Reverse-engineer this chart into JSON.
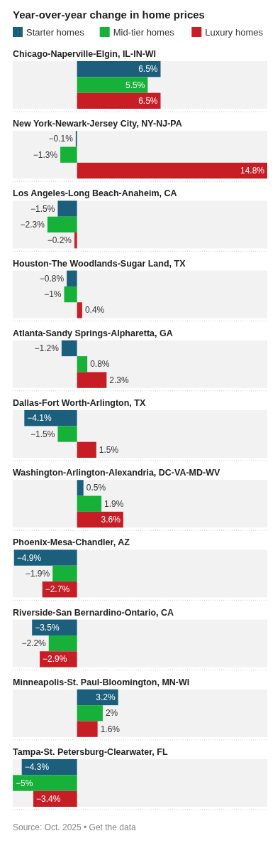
{
  "chart_data": {
    "type": "bar",
    "orientation": "horizontal",
    "title": "Year-over-year change in home prices",
    "categories": [
      "Chicago-Naperville-Elgin, IL-IN-WI",
      "New York-Newark-Jersey City, NY-NJ-PA",
      "Los Angeles-Long Beach-Anaheim, CA",
      "Houston-The Woodlands-Sugar Land, TX",
      "Atlanta-Sandy Springs-Alpharetta, GA",
      "Dallas-Fort Worth-Arlington, TX",
      "Washington-Arlington-Alexandria, DC-VA-MD-WV",
      "Phoenix-Mesa-Chandler, AZ",
      "Riverside-San Bernardino-Ontario, CA",
      "Minneapolis-St. Paul-Bloomington, MN-WI",
      "Tampa-St. Petersburg-Clearwater, FL"
    ],
    "xlim": [
      -5,
      14.8
    ],
    "series": [
      {
        "name": "Starter homes",
        "color": "#1b5f7c",
        "values": [
          6.5,
          -0.1,
          -1.5,
          -0.8,
          -1.2,
          -4.1,
          0.5,
          -4.9,
          -3.5,
          3.2,
          -4.3
        ],
        "value_labels": [
          "6.5%",
          "−0.1%",
          "−1.5%",
          "−0.8%",
          "−1.2%",
          "−4.1%",
          "0.5%",
          "−4.9%",
          "−3.5%",
          "3.2%",
          "−4.3%"
        ]
      },
      {
        "name": "Mid-tier homes",
        "color": "#16b139",
        "values": [
          5.5,
          -1.3,
          -2.3,
          -1,
          0.8,
          -1.5,
          1.9,
          -1.9,
          -2.2,
          2,
          -5
        ],
        "value_labels": [
          "5.5%",
          "−1.3%",
          "−2.3%",
          "−1%",
          "0.8%",
          "−1.5%",
          "1.9%",
          "−1.9%",
          "−2.2%",
          "2%",
          "−5%"
        ]
      },
      {
        "name": "Luxury homes",
        "color": "#c71e26",
        "values": [
          6.5,
          14.8,
          -0.2,
          0.4,
          2.3,
          1.5,
          3.6,
          -2.7,
          -2.9,
          1.6,
          -3.4
        ],
        "value_labels": [
          "6.5%",
          "14.8%",
          "−0.2%",
          "0.4%",
          "2.3%",
          "1.5%",
          "3.6%",
          "−2.7%",
          "−2.9%",
          "1.6%",
          "−3.4%"
        ]
      }
    ],
    "legend": "top left",
    "annotations": [
      "Source: Oct. 2025 • Get the data"
    ]
  }
}
